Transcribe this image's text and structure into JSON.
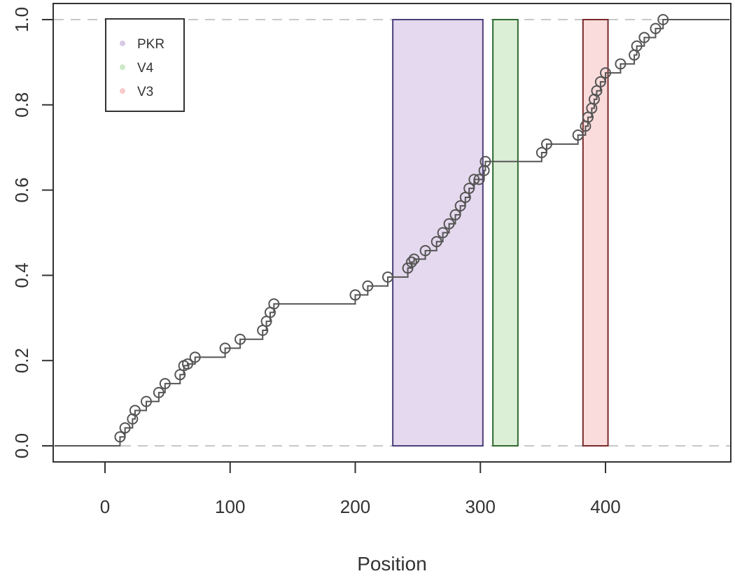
{
  "chart_data": {
    "type": "line",
    "title": "",
    "xlabel": "Position",
    "ylabel": "",
    "xlim": [
      -40,
      500
    ],
    "ylim": [
      -0.04,
      1.04
    ],
    "x_ticks": [
      0,
      100,
      200,
      300,
      400
    ],
    "x_tick_labels": [
      "0",
      "100",
      "200",
      "300",
      "400"
    ],
    "y_ticks": [
      0.0,
      0.2,
      0.4,
      0.6,
      0.8,
      1.0
    ],
    "y_tick_labels": [
      "0.0",
      "0.2",
      "0.4",
      "0.6",
      "0.8",
      "1.0"
    ],
    "grid": false,
    "reference_lines_y": [
      0,
      1
    ],
    "legend": {
      "position": "top-left",
      "entries": [
        {
          "label": "PKR",
          "color": "#d8c9e6"
        },
        {
          "label": "V4",
          "color": "#cde8c9"
        },
        {
          "label": "V3",
          "color": "#f9caca"
        }
      ]
    },
    "regions": [
      {
        "label": "PKR",
        "start": 230,
        "end": 302,
        "fill": "#e4d9ee",
        "stroke": "#4a3f7a"
      },
      {
        "label": "V4",
        "start": 310,
        "end": 330,
        "fill": "#dbeed6",
        "stroke": "#2f6a2f"
      },
      {
        "label": "V3",
        "start": 382,
        "end": 402,
        "fill": "#fbdcdc",
        "stroke": "#7a2a2a"
      }
    ],
    "series": [
      {
        "type": "step-with-points",
        "x": [
          12,
          16,
          22,
          24,
          33,
          43,
          48,
          60,
          63,
          66,
          72,
          96,
          108,
          126,
          129,
          132,
          135,
          200,
          210,
          226,
          242,
          245,
          247,
          256,
          265,
          270,
          275,
          280,
          284,
          288,
          291,
          295,
          299,
          303,
          304
        ],
        "y": [
          0.021,
          0.042,
          0.063,
          0.083,
          0.104,
          0.125,
          0.146,
          0.167,
          0.188,
          0.192,
          0.208,
          0.229,
          0.25,
          0.271,
          0.292,
          0.313,
          0.333,
          0.354,
          0.375,
          0.396,
          0.417,
          0.431,
          0.438,
          0.458,
          0.479,
          0.5,
          0.521,
          0.542,
          0.563,
          0.583,
          0.604,
          0.625,
          0.625,
          0.646,
          0.667
        ],
        "y_note": "cumulative fraction"
      }
    ],
    "points_after": {
      "x": [
        349,
        353,
        378,
        384,
        386,
        389,
        391,
        393,
        396,
        400,
        412,
        423,
        425,
        431,
        440,
        446
      ],
      "y": [
        0.688,
        0.708,
        0.729,
        0.75,
        0.771,
        0.792,
        0.813,
        0.833,
        0.854,
        0.875,
        0.896,
        0.917,
        0.938,
        0.958,
        0.979,
        1.0
      ]
    },
    "step_segments_y": [
      0.0,
      0.208,
      0.25,
      0.333,
      0.375,
      0.396,
      0.667,
      0.708,
      0.875,
      1.0
    ]
  }
}
